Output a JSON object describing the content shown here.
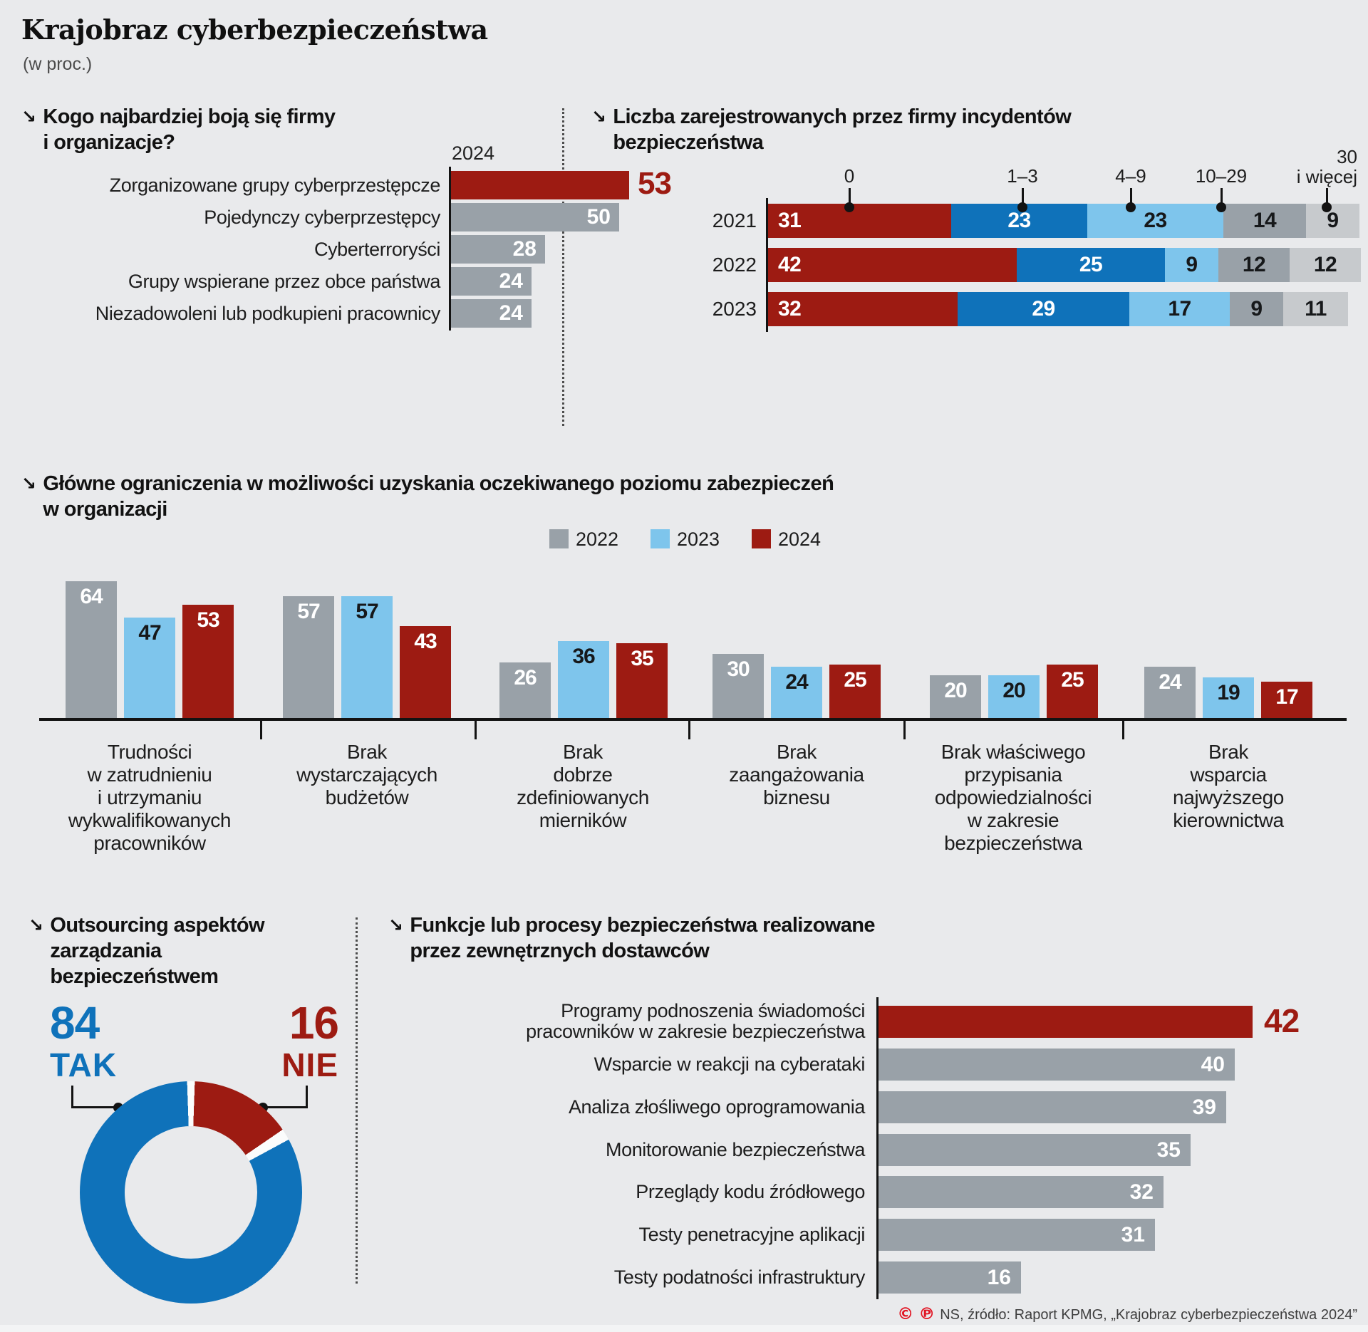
{
  "page": {
    "title": "Krajobraz cyberbezpieczeństwa",
    "subtitle": "(w proc.)",
    "arrow_glyph": "↘",
    "marks": [
      "©",
      "℗"
    ],
    "source": "NS, źródło: Raport KPMG, „Krajobraz cyberbezpieczeństwa 2024”"
  },
  "colors": {
    "bg": "#e9eaec",
    "red": "#9d1b12",
    "gray": "#99a1a8",
    "blue": "#0f72ba",
    "light_blue": "#7ec5ec",
    "light_gray": "#c7cacd",
    "ink": "#131313"
  },
  "chart_data": [
    {
      "id": "fears",
      "type": "bar",
      "orientation": "horizontal",
      "title": "Kogo najbardziej boją się firmy i organizacje?",
      "title_lines": [
        "Kogo najbardziej boją się firmy",
        "i organizacje?"
      ],
      "series_label": "2024",
      "categories": [
        "Zorganizowane grupy cyberprzestępcze",
        "Pojedynczy cyberprzestępcy",
        "Cyberterroryści",
        "Grupy wspierane przez obce państwa",
        "Niezadowoleni lub podkupieni pracownicy"
      ],
      "values": [
        53,
        50,
        28,
        24,
        24
      ],
      "bar_colors": [
        "red",
        "gray",
        "gray",
        "gray",
        "gray"
      ],
      "xlim": [
        0,
        60
      ]
    },
    {
      "id": "incidents",
      "type": "bar",
      "stacked": true,
      "orientation": "horizontal",
      "title": "Liczba zarejestrowanych przez firmy incydentów bezpieczeństwa",
      "title_lines": [
        "Liczba zarejestrowanych przez firmy incydentów",
        "bezpieczeństwa"
      ],
      "segment_labels": [
        "0",
        "1–3",
        "4–9",
        "10–29",
        "30 i więcej"
      ],
      "segment_colors": [
        "red",
        "blue",
        "light_blue",
        "gray",
        "light_gray"
      ],
      "rows": [
        {
          "year": "2021",
          "values": [
            31,
            23,
            23,
            14,
            9
          ]
        },
        {
          "year": "2022",
          "values": [
            42,
            25,
            9,
            12,
            12
          ]
        },
        {
          "year": "2023",
          "values": [
            32,
            29,
            17,
            9,
            11
          ]
        }
      ],
      "xlim": [
        0,
        100
      ]
    },
    {
      "id": "limitations",
      "type": "bar",
      "grouped": true,
      "title": "Główne ograniczenia w możliwości uzyskania oczekiwanego poziomu zabezpieczeń w organizacji",
      "title_lines": [
        "Główne ograniczenia w możliwości uzyskania oczekiwanego poziomu zabezpieczeń",
        "w organizacji"
      ],
      "legend": [
        {
          "label": "2022",
          "color": "gray"
        },
        {
          "label": "2023",
          "color": "light_blue"
        },
        {
          "label": "2024",
          "color": "red"
        }
      ],
      "categories": [
        [
          "Trudności",
          "w zatrudnieniu",
          "i utrzymaniu",
          "wykwalifikowanych",
          "pracowników"
        ],
        [
          "Brak",
          "wystarczających",
          "budżetów"
        ],
        [
          "Brak",
          "dobrze",
          "zdefiniowanych",
          "mierników"
        ],
        [
          "Brak",
          "zaangażowania",
          "biznesu"
        ],
        [
          "Brak właściwego",
          "przypisania",
          "odpowiedzialności",
          "w zakresie",
          "bezpieczeństwa"
        ],
        [
          "Brak",
          "wsparcia",
          "najwyższego",
          "kierownictwa"
        ]
      ],
      "series": [
        {
          "name": "2022",
          "values": [
            64,
            57,
            26,
            30,
            20,
            24
          ]
        },
        {
          "name": "2023",
          "values": [
            47,
            57,
            36,
            24,
            20,
            19
          ]
        },
        {
          "name": "2024",
          "values": [
            53,
            43,
            35,
            25,
            25,
            17
          ]
        }
      ],
      "ylim": [
        0,
        70
      ]
    },
    {
      "id": "outsourcing",
      "type": "pie",
      "donut": true,
      "title": "Outsourcing aspektów zarządzania bezpieczeństwem",
      "title_lines": [
        "Outsourcing aspektów",
        "zarządzania",
        "bezpieczeństwem"
      ],
      "slices": [
        {
          "label": "TAK",
          "value": 84,
          "color": "blue"
        },
        {
          "label": "NIE",
          "value": 16,
          "color": "red"
        }
      ]
    },
    {
      "id": "functions",
      "type": "bar",
      "orientation": "horizontal",
      "title": "Funkcje lub procesy bezpieczeństwa realizowane przez zewnętrznych dostawców",
      "title_lines": [
        "Funkcje lub procesy bezpieczeństwa realizowane",
        "przez zewnętrznych dostawców"
      ],
      "categories": [
        [
          "Programy podnoszenia świadomości",
          "pracowników w zakresie bezpieczeństwa"
        ],
        [
          "Wsparcie w reakcji na cyberataki"
        ],
        [
          "Analiza złośliwego oprogramowania"
        ],
        [
          "Monitorowanie bezpieczeństwa"
        ],
        [
          "Przeglądy kodu źródłowego"
        ],
        [
          "Testy penetracyjne aplikacji"
        ],
        [
          "Testy podatności infrastruktury"
        ]
      ],
      "values": [
        42,
        40,
        39,
        35,
        32,
        31,
        16
      ],
      "bar_colors": [
        "red",
        "gray",
        "gray",
        "gray",
        "gray",
        "gray",
        "gray"
      ],
      "xlim": [
        0,
        50
      ]
    }
  ]
}
